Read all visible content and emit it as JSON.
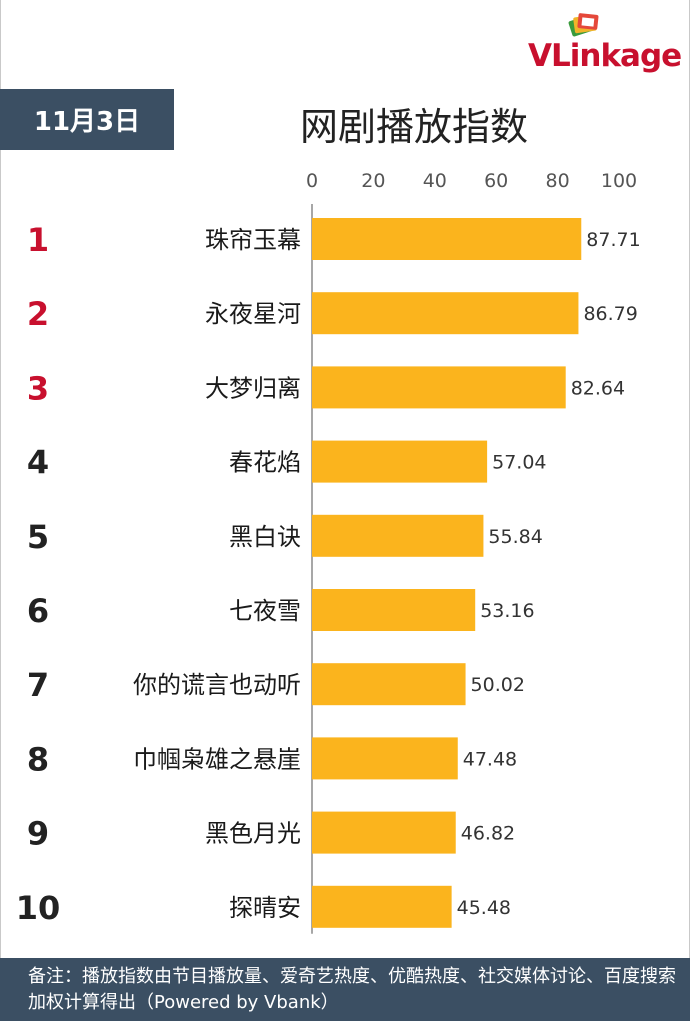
{
  "logo": {
    "brand": "VLinkage",
    "icon": "stacked-cards-logo-icon"
  },
  "date_label": "11月3日",
  "title": "网剧播放指数",
  "footer_note": "备注：播放指数由节目播放量、爱奇艺热度、优酷热度、社交媒体讨论、百度搜索加权计算得出（Powered by Vbank）",
  "colors": {
    "bar": "#fbb41d",
    "rank_top": "#c8102e",
    "rank_other": "#222222",
    "header_bg": "#3b4f63"
  },
  "chart_data": {
    "type": "bar",
    "orientation": "horizontal",
    "title": "网剧播放指数",
    "xlim": [
      0,
      100
    ],
    "x_ticks": [
      "0",
      "20",
      "40",
      "60",
      "80",
      "100"
    ],
    "axis_position": "top",
    "grid": false,
    "ranks": [
      "1",
      "2",
      "3",
      "4",
      "5",
      "6",
      "7",
      "8",
      "9",
      "10"
    ],
    "categories": [
      "珠帘玉幕",
      "永夜星河",
      "大梦归离",
      "春花焰",
      "黑白诀",
      "七夜雪",
      "你的谎言也动听",
      "巾帼枭雄之悬崖",
      "黑色月光",
      "探晴安"
    ],
    "values": [
      87.71,
      86.79,
      82.64,
      57.04,
      55.84,
      53.16,
      50.02,
      47.48,
      46.82,
      45.48
    ],
    "value_labels": [
      "87.71",
      "86.79",
      "82.64",
      "57.04",
      "55.84",
      "53.16",
      "50.02",
      "47.48",
      "46.82",
      "45.48"
    ]
  }
}
